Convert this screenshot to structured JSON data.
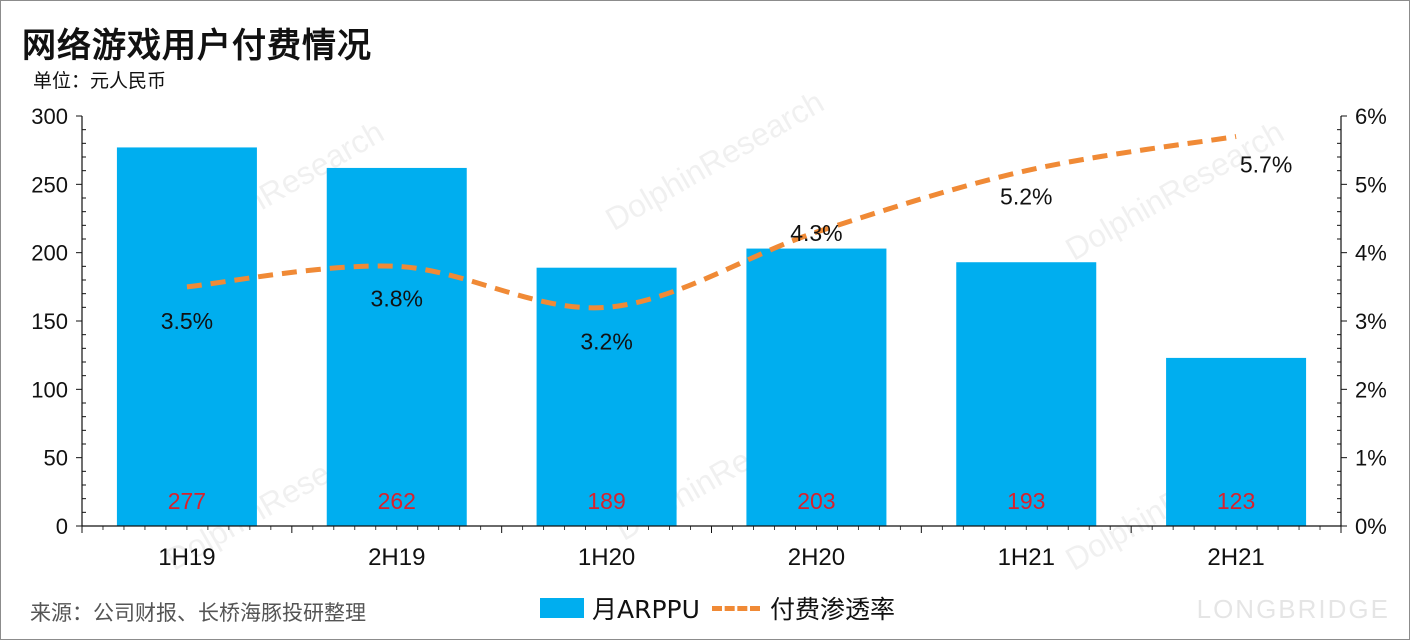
{
  "title": "网络游戏用户付费情况",
  "unit_label": "单位：元人民币",
  "source": "来源：公司财报、长桥海豚投研整理",
  "watermark": {
    "brand": "LONGBRIDGE",
    "research": "DolphinResearch"
  },
  "colors": {
    "bar": "#00aeef",
    "line": "#f08a36",
    "bar_label": "#d9212c",
    "axis": "#111111"
  },
  "legend": {
    "bar_label": "月ARPPU",
    "line_label": "付费渗透率"
  },
  "chart_data": {
    "type": "bar+line",
    "categories": [
      "1H19",
      "2H19",
      "1H20",
      "2H20",
      "1H21",
      "2H21"
    ],
    "series": [
      {
        "name": "月ARPPU",
        "type": "bar",
        "axis": "left",
        "values": [
          277,
          262,
          189,
          203,
          193,
          123
        ],
        "labels": [
          "277",
          "262",
          "189",
          "203",
          "193",
          "123"
        ]
      },
      {
        "name": "付费渗透率",
        "type": "line",
        "style": "dashed",
        "smooth": true,
        "axis": "right",
        "values": [
          3.5,
          3.8,
          3.2,
          4.3,
          5.2,
          5.7
        ],
        "labels": [
          "3.5%",
          "3.8%",
          "3.2%",
          "4.3%",
          "5.2%",
          "5.7%"
        ]
      }
    ],
    "y_left": {
      "min": 0,
      "max": 300,
      "ticks": [
        "0",
        "50",
        "100",
        "150",
        "200",
        "250",
        "300"
      ]
    },
    "y_right": {
      "min": 0,
      "max": 6,
      "ticks": [
        "0%",
        "1%",
        "2%",
        "3%",
        "4%",
        "5%",
        "6%"
      ]
    },
    "grid": false
  }
}
